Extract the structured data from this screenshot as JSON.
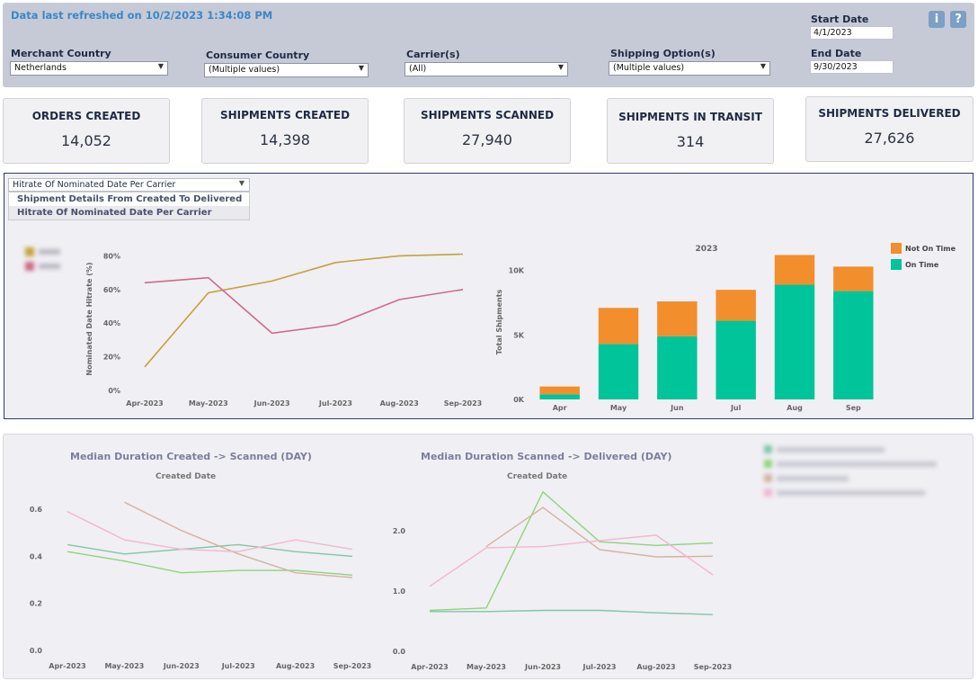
{
  "header": {
    "refresh_text": "Data last refreshed on 10/2/2023 1:34:08 PM",
    "filters": [
      {
        "label": "Merchant Country",
        "value": "Netherlands"
      },
      {
        "label": "Consumer Country",
        "value": "(Multiple values)"
      },
      {
        "label": "Carrier(s)",
        "value": "(All)"
      },
      {
        "label": "Shipping Option(s)",
        "value": "(Multiple values)"
      }
    ],
    "start_date_label": "Start Date",
    "start_date": "4/1/2023",
    "end_date_label": "End Date",
    "end_date": "9/30/2023",
    "info_icon": "i",
    "help_icon": "?"
  },
  "kpis": [
    {
      "title": "ORDERS CREATED",
      "value": "14,052"
    },
    {
      "title": "SHIPMENTS CREATED",
      "value": "14,398"
    },
    {
      "title": "SHIPMENTS SCANNED",
      "value": "27,940"
    },
    {
      "title": "SHIPMENTS IN TRANSIT",
      "value": "314"
    },
    {
      "title": "SHIPMENTS DELIVERED",
      "value": "27,626"
    }
  ],
  "view_selector": {
    "selected": "Hitrate Of Nominated Date Per Carrier",
    "options": [
      "Shipment Details From Created To Delivered",
      "Hitrate Of Nominated Date Per Carrier"
    ]
  },
  "colors": {
    "gold": "#c4a239",
    "pink": "#cc6b88",
    "orange": "#f28e2b",
    "teal": "#00c49a",
    "mteal": "#7fc7a6",
    "mgreen": "#8fd37c",
    "mtan": "#d4b2a0",
    "mpink": "#f2b6cf"
  },
  "chart_data": [
    {
      "type": "line",
      "ylabel": "Nominated Date Hitrate (%)",
      "categories": [
        "Apr-2023",
        "May-2023",
        "Jun-2023",
        "Jul-2023",
        "Aug-2023",
        "Sep-2023"
      ],
      "ylim": [
        0,
        85
      ],
      "yticks": [
        "0%",
        "20%",
        "40%",
        "60%",
        "80%"
      ],
      "series": [
        {
          "color_key": "gold",
          "values": [
            14,
            58,
            65,
            76,
            80,
            81
          ]
        },
        {
          "color_key": "pink",
          "values": [
            64,
            67,
            34,
            39,
            54,
            60
          ]
        }
      ]
    },
    {
      "type": "bar",
      "title": "2023",
      "ylabel": "Total Shipments",
      "categories": [
        "Apr",
        "May",
        "Jun",
        "Jul",
        "Aug",
        "Sep"
      ],
      "ylim": [
        0,
        12000
      ],
      "yticks": [
        "0K",
        "5K",
        "10K"
      ],
      "legend": [
        "Not On Time",
        "On Time"
      ],
      "series": [
        {
          "name": "On Time",
          "color_key": "teal",
          "values": [
            400,
            4300,
            4900,
            6100,
            8900,
            8400
          ]
        },
        {
          "name": "Not On Time",
          "color_key": "orange",
          "values": [
            600,
            2800,
            2700,
            2400,
            2300,
            1900
          ]
        }
      ]
    },
    {
      "type": "line",
      "title": "Median Duration Created -> Scanned (DAY)",
      "subtitle": "Created Date",
      "categories": [
        "Apr-2023",
        "May-2023",
        "Jun-2023",
        "Jul-2023",
        "Aug-2023",
        "Sep-2023"
      ],
      "ylim": [
        0,
        0.7
      ],
      "yticks": [
        "0.0",
        "0.2",
        "0.4",
        "0.6"
      ],
      "series": [
        {
          "color_key": "mteal",
          "values": [
            0.45,
            0.41,
            0.43,
            0.45,
            0.42,
            0.4
          ]
        },
        {
          "color_key": "mgreen",
          "values": [
            0.42,
            0.38,
            0.33,
            0.34,
            0.34,
            0.32
          ]
        },
        {
          "color_key": "mtan",
          "values": [
            null,
            0.63,
            0.51,
            0.41,
            0.33,
            0.31
          ]
        },
        {
          "color_key": "mpink",
          "values": [
            0.59,
            0.47,
            0.43,
            0.42,
            0.47,
            0.43
          ]
        }
      ]
    },
    {
      "type": "line",
      "title": "Median Duration Scanned -> Delivered (DAY)",
      "subtitle": "Created Date",
      "categories": [
        "Apr-2023",
        "May-2023",
        "Jun-2023",
        "Jul-2023",
        "Aug-2023",
        "Sep-2023"
      ],
      "ylim": [
        0,
        2.9
      ],
      "yticks": [
        "0.0",
        "1.0",
        "2.0"
      ],
      "series": [
        {
          "color_key": "mteal",
          "values": [
            0.66,
            0.66,
            0.68,
            0.68,
            0.64,
            0.61
          ]
        },
        {
          "color_key": "mgreen",
          "values": [
            0.68,
            0.72,
            2.65,
            1.82,
            1.76,
            1.8
          ]
        },
        {
          "color_key": "mtan",
          "values": [
            null,
            1.74,
            2.39,
            1.69,
            1.57,
            1.58
          ]
        },
        {
          "color_key": "mpink",
          "values": [
            1.08,
            1.72,
            1.74,
            1.84,
            1.93,
            1.27
          ]
        }
      ]
    }
  ]
}
